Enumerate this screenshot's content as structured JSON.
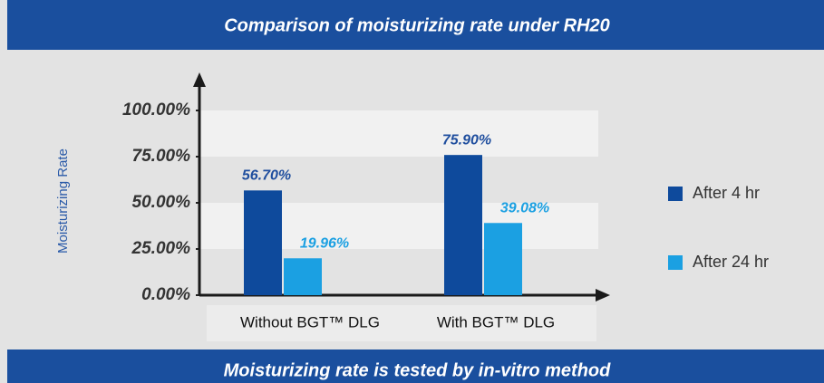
{
  "chart_data": {
    "type": "bar",
    "title": "Comparison of moisturizing rate under RH20",
    "footnote": "Moisturizing rate is tested by in-vitro method",
    "y_label": "Moisturizing Rate",
    "categories": [
      "Without BGT™ DLG",
      "With BGT™ DLG"
    ],
    "series": [
      {
        "name": "After 4 hr",
        "color": "#0e4a9c",
        "values": [
          56.7,
          75.9
        ],
        "value_labels": [
          "56.70%",
          "75.90%"
        ]
      },
      {
        "name": "After 24 hr",
        "color": "#1ba0e2",
        "values": [
          19.96,
          39.08
        ],
        "value_labels": [
          "19.96%",
          "39.08%"
        ]
      }
    ],
    "ylim": [
      0,
      100
    ],
    "yticks": [
      {
        "value": 0,
        "label": "0.00%"
      },
      {
        "value": 25,
        "label": "25.00%"
      },
      {
        "value": 50,
        "label": "50.00%"
      },
      {
        "value": 75,
        "label": "75.00%"
      },
      {
        "value": 100,
        "label": "100.00%"
      }
    ],
    "legend": "right"
  }
}
